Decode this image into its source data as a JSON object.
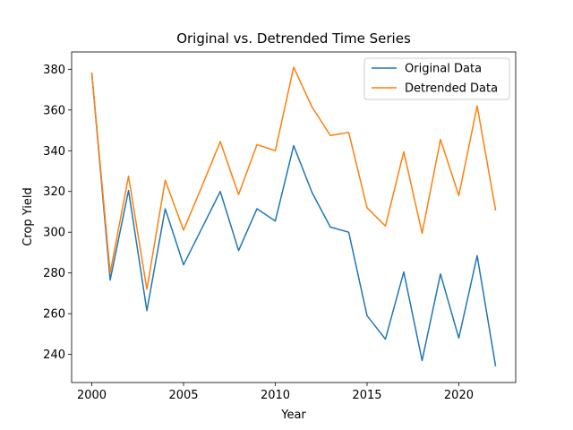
{
  "chart_data": {
    "type": "line",
    "title": "Original vs. Detrended Time Series",
    "xlabel": "Year",
    "ylabel": "Crop Yield",
    "x": [
      2000,
      2001,
      2002,
      2003,
      2004,
      2005,
      2006,
      2007,
      2008,
      2009,
      2010,
      2011,
      2012,
      2013,
      2014,
      2015,
      2016,
      2017,
      2018,
      2019,
      2020,
      2021,
      2022
    ],
    "series": [
      {
        "name": "Original Data",
        "color": "#1f77b4",
        "values": [
          378,
          276.5,
          320.5,
          261.5,
          311.5,
          284,
          302,
          320,
          291,
          311.5,
          305.5,
          342.5,
          319.5,
          302.5,
          300,
          259,
          247.5,
          280.5,
          237,
          279.5,
          248,
          288.5,
          234.5
        ]
      },
      {
        "name": "Detrended Data",
        "color": "#ff7f0e",
        "values": [
          378,
          280,
          327.5,
          272,
          325.5,
          301,
          322.5,
          344.5,
          318.5,
          343,
          340,
          381,
          361.5,
          347.5,
          349,
          312,
          303,
          339.5,
          299.5,
          345.5,
          318,
          362,
          311
        ]
      }
    ],
    "xlim": [
      1998.9,
      2023.1
    ],
    "ylim": [
      226.2,
      388.5
    ],
    "xticks": [
      2000,
      2005,
      2010,
      2015,
      2020
    ],
    "yticks": [
      240,
      260,
      280,
      300,
      320,
      340,
      360,
      380
    ],
    "grid": false,
    "legend_position": "top-right"
  }
}
